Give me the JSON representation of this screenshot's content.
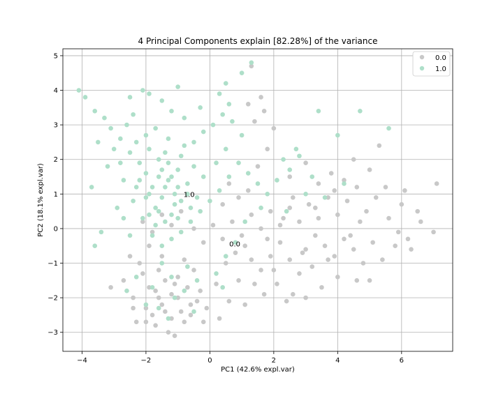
{
  "chart_data": {
    "type": "scatter",
    "title": "4 Principal Components explain [82.28%] of the variance",
    "xlabel": "PC1 (42.6% expl.var)",
    "ylabel": "PC2 (18.1% expl.var)",
    "xlim": [
      -4.6,
      7.6
    ],
    "ylim": [
      -3.55,
      5.2
    ],
    "xticks": [
      -4,
      -2,
      0,
      2,
      4,
      6
    ],
    "yticks": [
      -3,
      -2,
      -1,
      0,
      1,
      2,
      3,
      4,
      5
    ],
    "grid": true,
    "legend": {
      "position": "top-right",
      "entries": [
        "0.0",
        "1.0"
      ]
    },
    "colors": {
      "0.0": "#c8c8c8",
      "1.0": "#aedfc9"
    },
    "annotations": [
      {
        "text": "1.0",
        "x": -0.65,
        "y": 0.92
      },
      {
        "text": "0.0",
        "x": 0.78,
        "y": -0.52
      }
    ],
    "series": [
      {
        "name": "0.0",
        "color": "#c8c8c8",
        "points": [
          [
            -1.5,
            -2.2
          ],
          [
            -1.2,
            -2.6
          ],
          [
            -1.7,
            -1.8
          ],
          [
            -1.0,
            -2.0
          ],
          [
            -1.4,
            -1.5
          ],
          [
            -0.9,
            -2.4
          ],
          [
            -1.8,
            -2.5
          ],
          [
            -1.3,
            -3.0
          ],
          [
            -1.1,
            -3.1
          ],
          [
            -2.3,
            -2.7
          ],
          [
            -2.0,
            -2.3
          ],
          [
            -0.7,
            -1.7
          ],
          [
            -0.6,
            -2.2
          ],
          [
            -1.6,
            -1.2
          ],
          [
            -2.2,
            -1.0
          ],
          [
            -2.5,
            -0.8
          ],
          [
            -2.7,
            -1.5
          ],
          [
            -3.1,
            -1.7
          ],
          [
            -2.4,
            -2.0
          ],
          [
            -1.9,
            -0.5
          ],
          [
            -1.5,
            -0.8
          ],
          [
            -0.8,
            -0.9
          ],
          [
            -0.5,
            -1.2
          ],
          [
            -0.3,
            -1.8
          ],
          [
            -0.1,
            -2.3
          ],
          [
            0.2,
            -1.6
          ],
          [
            0.5,
            -1.0
          ],
          [
            0.8,
            -0.7
          ],
          [
            1.1,
            -0.5
          ],
          [
            1.3,
            -0.9
          ],
          [
            1.6,
            -1.2
          ],
          [
            1.9,
            -0.8
          ],
          [
            2.2,
            -0.4
          ],
          [
            2.5,
            -0.9
          ],
          [
            2.8,
            -1.3
          ],
          [
            3.0,
            -0.6
          ],
          [
            3.3,
            -0.2
          ],
          [
            3.6,
            -0.5
          ],
          [
            3.9,
            -0.8
          ],
          [
            4.2,
            -0.3
          ],
          [
            4.5,
            -0.6
          ],
          [
            4.8,
            -1.0
          ],
          [
            5.1,
            -0.4
          ],
          [
            5.4,
            -0.9
          ],
          [
            5.8,
            -0.5
          ],
          [
            6.2,
            -0.3
          ],
          [
            6.6,
            0.2
          ],
          [
            7.0,
            -0.1
          ],
          [
            6.0,
            0.7
          ],
          [
            5.6,
            0.3
          ],
          [
            5.2,
            0.9
          ],
          [
            4.9,
            0.5
          ],
          [
            4.6,
            1.2
          ],
          [
            4.3,
            0.8
          ],
          [
            4.0,
            0.4
          ],
          [
            3.7,
            0.9
          ],
          [
            3.4,
            0.3
          ],
          [
            3.1,
            0.7
          ],
          [
            2.8,
            0.2
          ],
          [
            2.5,
            0.6
          ],
          [
            2.2,
            0.1
          ],
          [
            1.9,
            0.5
          ],
          [
            1.6,
            0.0
          ],
          [
            1.3,
            0.4
          ],
          [
            1.0,
            -0.2
          ],
          [
            0.7,
            0.2
          ],
          [
            0.4,
            -0.3
          ],
          [
            0.1,
            0.1
          ],
          [
            -0.2,
            -0.4
          ],
          [
            -0.5,
            0.0
          ],
          [
            1.5,
            1.8
          ],
          [
            1.8,
            2.3
          ],
          [
            2.0,
            2.9
          ],
          [
            1.7,
            3.4
          ],
          [
            1.4,
            3.1
          ],
          [
            1.2,
            3.6
          ],
          [
            1.6,
            3.8
          ],
          [
            1.3,
            4.7
          ],
          [
            2.5,
            1.5
          ],
          [
            3.0,
            1.9
          ],
          [
            3.4,
            1.3
          ],
          [
            3.8,
            1.6
          ],
          [
            4.2,
            1.4
          ],
          [
            4.5,
            2.0
          ],
          [
            5.0,
            1.7
          ],
          [
            5.3,
            2.4
          ],
          [
            5.5,
            1.2
          ],
          [
            6.1,
            1.1
          ],
          [
            6.5,
            0.5
          ],
          [
            7.1,
            1.3
          ],
          [
            2.1,
            -1.6
          ],
          [
            2.6,
            -1.9
          ],
          [
            3.0,
            -2.0
          ],
          [
            2.4,
            -2.1
          ],
          [
            1.7,
            -1.9
          ],
          [
            1.1,
            -2.2
          ],
          [
            0.6,
            -2.1
          ],
          [
            0.9,
            -1.5
          ],
          [
            1.4,
            -1.6
          ],
          [
            3.5,
            -1.7
          ],
          [
            4.0,
            -1.4
          ],
          [
            4.6,
            -1.5
          ],
          [
            5.0,
            -1.5
          ],
          [
            3.2,
            -1.1
          ],
          [
            2.0,
            -1.2
          ],
          [
            0.3,
            -2.6
          ],
          [
            -0.2,
            -2.7
          ],
          [
            -0.4,
            -2.1
          ],
          [
            -1.0,
            -1.4
          ],
          [
            -2.1,
            -1.3
          ],
          [
            -1.7,
            -2.8
          ],
          [
            -2.0,
            -2.7
          ],
          [
            -1.4,
            -2.4
          ],
          [
            -1.2,
            -1.9
          ],
          [
            -0.8,
            -2.7
          ],
          [
            -1.6,
            -2.0
          ],
          [
            -1.1,
            -1.6
          ],
          [
            -2.4,
            -2.3
          ],
          [
            -1.9,
            -1.7
          ],
          [
            -0.6,
            -2.5
          ],
          [
            -1.5,
            0.4
          ],
          [
            -1.8,
            -0.1
          ],
          [
            -2.1,
            0.2
          ],
          [
            -1.2,
            0.1
          ],
          [
            -0.9,
            0.5
          ],
          [
            0.6,
            1.3
          ],
          [
            0.9,
            0.9
          ],
          [
            1.2,
            1.1
          ],
          [
            0.4,
            0.7
          ],
          [
            2.6,
            0.9
          ],
          [
            3.9,
            1.1
          ],
          [
            4.7,
            0.2
          ],
          [
            5.9,
            -0.1
          ],
          [
            6.3,
            -0.6
          ],
          [
            3.7,
            -0.9
          ],
          [
            2.9,
            -0.7
          ],
          [
            1.8,
            -0.3
          ],
          [
            2.3,
            0.3
          ],
          [
            3.3,
            0.6
          ],
          [
            4.4,
            -0.2
          ]
        ]
      },
      {
        "name": "1.0",
        "color": "#aedfc9",
        "points": [
          [
            -1.8,
            1.2
          ],
          [
            -1.5,
            0.9
          ],
          [
            -2.0,
            1.6
          ],
          [
            -1.3,
            1.4
          ],
          [
            -1.7,
            0.6
          ],
          [
            -1.1,
            1.0
          ],
          [
            -2.2,
            1.9
          ],
          [
            -1.6,
            2.0
          ],
          [
            -1.2,
            0.4
          ],
          [
            -0.9,
            0.8
          ],
          [
            -2.5,
            2.2
          ],
          [
            -2.8,
            2.6
          ],
          [
            -3.1,
            2.9
          ],
          [
            -2.6,
            3.0
          ],
          [
            -2.3,
            2.5
          ],
          [
            -1.9,
            2.3
          ],
          [
            -1.4,
            2.2
          ],
          [
            -1.0,
            1.7
          ],
          [
            -0.7,
            1.3
          ],
          [
            -0.4,
            0.9
          ],
          [
            -3.6,
            3.4
          ],
          [
            -3.9,
            3.8
          ],
          [
            -4.1,
            4.0
          ],
          [
            -3.3,
            3.2
          ],
          [
            -3.5,
            2.5
          ],
          [
            -3.2,
            1.8
          ],
          [
            -3.7,
            1.2
          ],
          [
            -2.9,
            0.6
          ],
          [
            -3.4,
            -0.1
          ],
          [
            -3.6,
            -0.5
          ],
          [
            -2.7,
            1.4
          ],
          [
            -2.4,
            0.8
          ],
          [
            -2.1,
            0.3
          ],
          [
            -1.8,
            -0.2
          ],
          [
            -1.5,
            -0.5
          ],
          [
            -1.2,
            -0.3
          ],
          [
            -0.9,
            -0.1
          ],
          [
            -0.6,
            0.2
          ],
          [
            -0.3,
            0.5
          ],
          [
            0.0,
            0.8
          ],
          [
            0.3,
            1.1
          ],
          [
            0.6,
            1.5
          ],
          [
            0.9,
            1.9
          ],
          [
            1.2,
            1.6
          ],
          [
            1.5,
            1.3
          ],
          [
            1.8,
            1.0
          ],
          [
            2.1,
            1.4
          ],
          [
            2.5,
            1.7
          ],
          [
            2.8,
            2.1
          ],
          [
            3.2,
            1.5
          ],
          [
            -0.5,
            2.5
          ],
          [
            -0.2,
            2.8
          ],
          [
            0.1,
            3.0
          ],
          [
            0.4,
            3.3
          ],
          [
            0.7,
            3.1
          ],
          [
            1.0,
            2.7
          ],
          [
            0.6,
            3.6
          ],
          [
            0.3,
            3.9
          ],
          [
            -0.3,
            3.5
          ],
          [
            -0.8,
            3.2
          ],
          [
            -1.2,
            3.4
          ],
          [
            -1.5,
            3.7
          ],
          [
            -1.9,
            3.9
          ],
          [
            -2.1,
            4.0
          ],
          [
            -2.5,
            3.8
          ],
          [
            -1.0,
            4.1
          ],
          [
            0.5,
            4.2
          ],
          [
            1.3,
            4.8
          ],
          [
            1.0,
            4.5
          ],
          [
            4.7,
            3.4
          ],
          [
            5.6,
            2.9
          ],
          [
            4.0,
            2.7
          ],
          [
            3.4,
            3.4
          ],
          [
            2.7,
            2.3
          ],
          [
            2.3,
            2.0
          ],
          [
            -1.5,
            -1.0
          ],
          [
            -1.2,
            -1.4
          ],
          [
            -1.8,
            -1.7
          ],
          [
            -2.0,
            -2.2
          ],
          [
            -1.6,
            -2.3
          ],
          [
            -0.7,
            -1.1
          ],
          [
            -0.4,
            -1.5
          ],
          [
            -2.3,
            -1.4
          ],
          [
            -2.6,
            -1.8
          ],
          [
            -1.1,
            -2.0
          ],
          [
            -0.8,
            -1.8
          ],
          [
            -0.5,
            -2.4
          ],
          [
            -1.3,
            -2.6
          ],
          [
            -2.5,
            -0.2
          ],
          [
            -2.7,
            0.3
          ],
          [
            -1.4,
            0.2
          ],
          [
            -1.7,
            0.1
          ],
          [
            -1.0,
            0.3
          ],
          [
            -0.6,
            0.6
          ],
          [
            -2.0,
            0.9
          ],
          [
            -1.6,
            1.5
          ],
          [
            -1.3,
            1.9
          ],
          [
            -0.9,
            2.1
          ],
          [
            -0.5,
            1.8
          ],
          [
            -0.2,
            1.5
          ],
          [
            0.2,
            1.9
          ],
          [
            0.5,
            2.3
          ],
          [
            -2.3,
            1.2
          ],
          [
            -2.0,
            2.7
          ],
          [
            -1.7,
            2.9
          ],
          [
            -1.3,
            2.6
          ],
          [
            -0.8,
            2.4
          ],
          [
            -2.8,
            1.9
          ],
          [
            -3.0,
            2.3
          ],
          [
            -2.4,
            3.3
          ],
          [
            3.0,
            1.0
          ],
          [
            3.6,
            0.9
          ],
          [
            4.2,
            1.3
          ],
          [
            2.4,
            0.5
          ],
          [
            1.6,
            0.6
          ],
          [
            1.1,
            0.2
          ],
          [
            0.8,
            -0.4
          ],
          [
            0.5,
            -0.8
          ],
          [
            0.2,
            -1.3
          ],
          [
            0.4,
            -1.7
          ],
          [
            -1.9,
            1.0
          ],
          [
            -1.4,
            1.2
          ],
          [
            -1.1,
            0.7
          ],
          [
            -1.6,
            0.5
          ],
          [
            -1.9,
            0.4
          ],
          [
            -2.2,
            1.4
          ],
          [
            -1.5,
            1.7
          ],
          [
            -1.2,
            1.5
          ],
          [
            -0.7,
            1.0
          ],
          [
            -1.0,
            1.2
          ]
        ]
      }
    ]
  }
}
